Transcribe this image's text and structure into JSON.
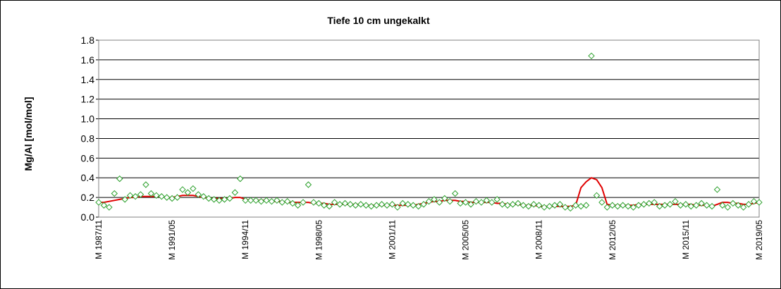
{
  "chart_data": {
    "type": "scatter",
    "title": "Tiefe   10 cm     ungekalkt",
    "y_label": "Mg/Al [mol/mol]",
    "categories": [
      "M 1987/11",
      null,
      null,
      null,
      null,
      null,
      null,
      null,
      null,
      null,
      null,
      null,
      null,
      null,
      "M 1991/05",
      null,
      null,
      null,
      null,
      null,
      null,
      null,
      null,
      null,
      null,
      null,
      null,
      null,
      "M 1994/11",
      null,
      null,
      null,
      null,
      null,
      null,
      null,
      null,
      null,
      null,
      null,
      null,
      null,
      "M 1998/05",
      null,
      null,
      null,
      null,
      null,
      null,
      null,
      null,
      null,
      null,
      null,
      null,
      null,
      "M 2001/11",
      null,
      null,
      null,
      null,
      null,
      null,
      null,
      null,
      null,
      null,
      null,
      null,
      null,
      "M 2005/05",
      null,
      null,
      null,
      null,
      null,
      null,
      null,
      null,
      null,
      null,
      null,
      null,
      null,
      "M 2008/11",
      null,
      null,
      null,
      null,
      null,
      null,
      null,
      null,
      null,
      null,
      null,
      null,
      null,
      "M 2012/05",
      null,
      null,
      null,
      null,
      null,
      null,
      null,
      null,
      null,
      null,
      null,
      null,
      null,
      "M 2015/11",
      null,
      null,
      null,
      null,
      null,
      null,
      null,
      null,
      null,
      null,
      null,
      null,
      null,
      "M 2019/05"
    ],
    "series": [
      {
        "style": "markers",
        "color": "#2ca02c",
        "values": [
          0.15,
          0.12,
          0.1,
          0.24,
          0.39,
          0.18,
          0.22,
          0.21,
          0.23,
          0.33,
          0.24,
          0.22,
          0.21,
          0.2,
          0.19,
          0.2,
          0.28,
          0.25,
          0.29,
          0.23,
          0.21,
          0.19,
          0.18,
          0.17,
          0.18,
          0.19,
          0.25,
          0.39,
          0.17,
          0.17,
          0.17,
          0.16,
          0.17,
          0.16,
          0.17,
          0.15,
          0.16,
          0.14,
          0.12,
          0.15,
          0.33,
          0.15,
          0.14,
          0.12,
          0.11,
          0.15,
          0.13,
          0.14,
          0.13,
          0.12,
          0.13,
          0.12,
          0.11,
          0.12,
          0.13,
          0.12,
          0.13,
          0.1,
          0.14,
          0.13,
          0.12,
          0.11,
          0.13,
          0.16,
          0.18,
          0.15,
          0.19,
          0.16,
          0.24,
          0.14,
          0.15,
          0.13,
          0.16,
          0.15,
          0.17,
          0.15,
          0.18,
          0.13,
          0.12,
          0.13,
          0.14,
          0.12,
          0.11,
          0.13,
          0.12,
          0.1,
          0.11,
          0.12,
          0.13,
          0.1,
          0.09,
          0.12,
          0.11,
          0.12,
          1.64,
          0.22,
          0.15,
          0.1,
          0.12,
          0.11,
          0.12,
          0.11,
          0.1,
          0.12,
          0.13,
          0.14,
          0.15,
          0.11,
          0.12,
          0.13,
          0.16,
          0.12,
          0.13,
          0.11,
          0.12,
          0.14,
          0.12,
          0.11,
          0.28,
          0.12,
          0.1,
          0.14,
          0.12,
          0.1,
          0.13,
          0.16,
          0.15
        ]
      },
      {
        "style": "line",
        "color": "#e00000",
        "values": [
          0.15,
          0.15,
          0.16,
          0.17,
          0.18,
          0.19,
          0.2,
          0.2,
          0.21,
          0.21,
          0.21,
          0.21,
          0.21,
          0.2,
          0.2,
          0.21,
          0.22,
          0.22,
          0.22,
          0.21,
          0.2,
          0.19,
          0.19,
          0.19,
          0.19,
          0.19,
          0.2,
          0.2,
          0.18,
          0.17,
          0.17,
          0.17,
          0.17,
          0.16,
          0.16,
          0.16,
          0.15,
          0.15,
          0.15,
          0.15,
          0.15,
          0.14,
          0.14,
          0.14,
          0.13,
          0.13,
          0.13,
          0.13,
          0.13,
          0.13,
          0.13,
          0.12,
          0.12,
          0.12,
          0.12,
          0.12,
          0.12,
          0.12,
          0.12,
          0.12,
          0.12,
          0.13,
          0.14,
          0.15,
          0.16,
          0.16,
          0.17,
          0.17,
          0.17,
          0.16,
          0.16,
          0.15,
          0.15,
          0.15,
          0.15,
          0.15,
          0.14,
          0.14,
          0.13,
          0.13,
          0.13,
          0.12,
          0.12,
          0.12,
          0.11,
          0.11,
          0.11,
          0.11,
          0.11,
          0.11,
          0.11,
          0.12,
          0.3,
          0.36,
          0.4,
          0.38,
          0.3,
          0.13,
          0.12,
          0.12,
          0.12,
          0.12,
          0.12,
          0.13,
          0.13,
          0.13,
          0.13,
          0.13,
          0.13,
          0.13,
          0.13,
          0.13,
          0.13,
          0.13,
          0.12,
          0.12,
          0.12,
          0.11,
          0.13,
          0.15,
          0.15,
          0.14,
          0.14,
          0.13,
          0.13,
          0.14,
          0.15
        ]
      }
    ],
    "ylim": [
      0,
      1.8
    ],
    "yticks": [
      {
        "value": 0,
        "label": "0.0"
      },
      {
        "value": 0.2,
        "label": "0.2"
      },
      {
        "value": 0.4,
        "label": "0.4"
      },
      {
        "value": 0.6,
        "label": "0.6"
      },
      {
        "value": 0.8,
        "label": "0.8"
      },
      {
        "value": 1,
        "label": "1.0"
      },
      {
        "value": 1.2,
        "label": "1.2"
      },
      {
        "value": 1.4,
        "label": "1.4"
      },
      {
        "value": 1.6,
        "label": "1.6"
      },
      {
        "value": 1.8,
        "label": "1.8"
      }
    ],
    "grid": true
  }
}
